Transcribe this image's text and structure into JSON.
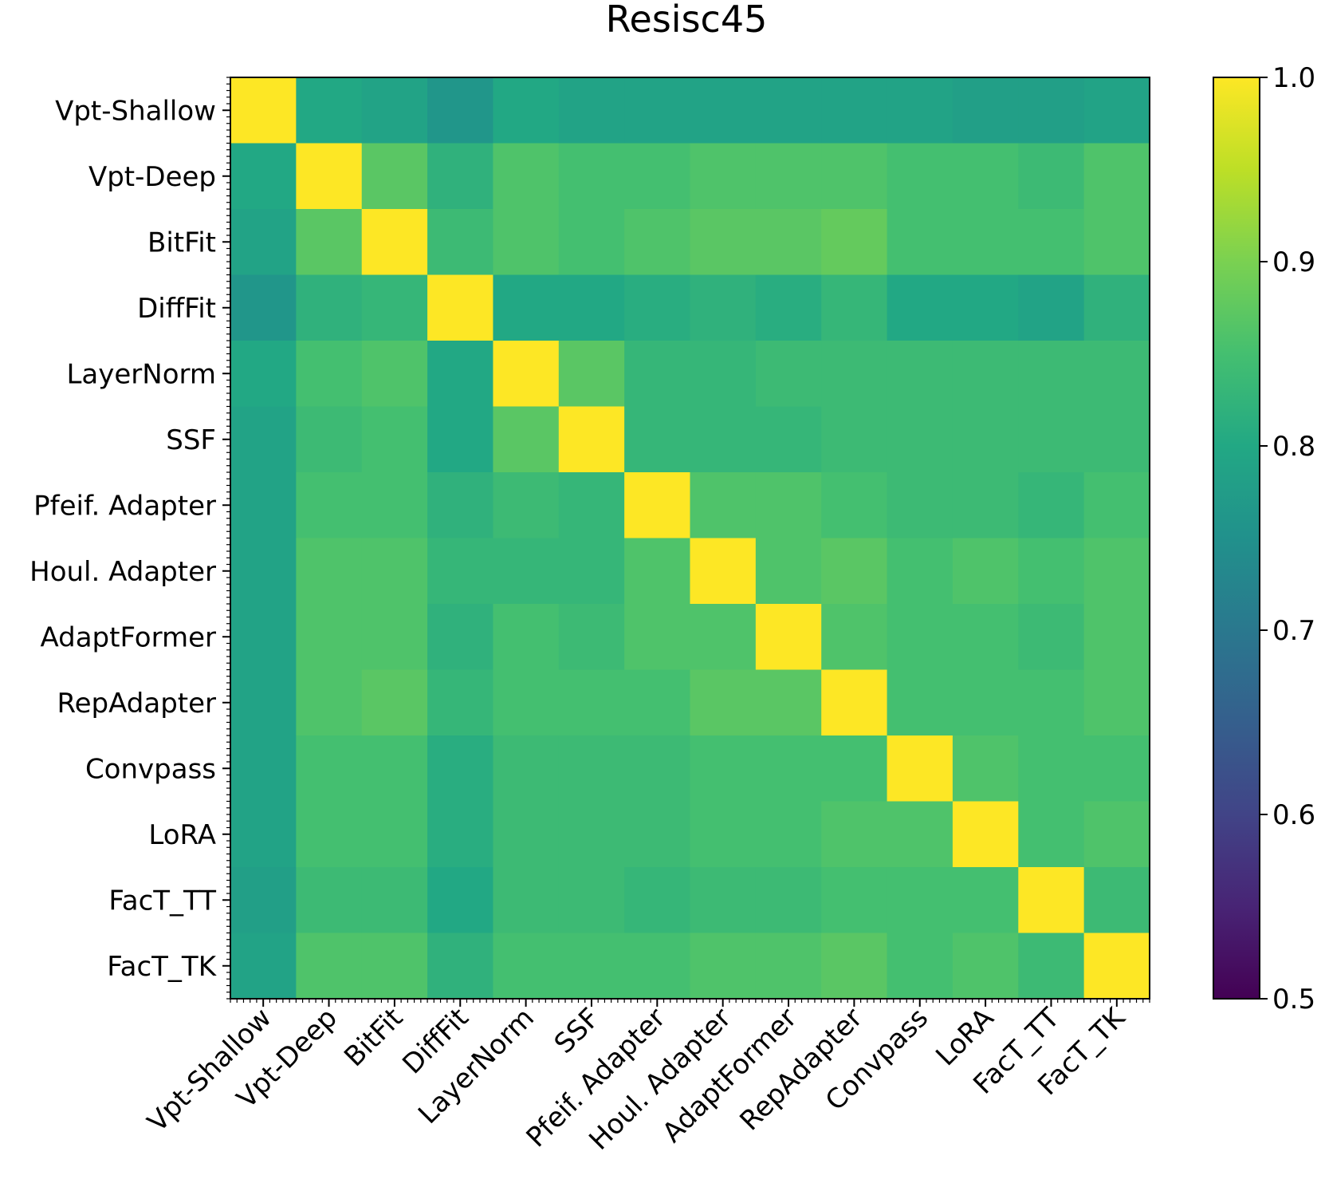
{
  "chart_data": {
    "type": "heatmap",
    "title": "Resisc45",
    "row_labels": [
      "Vpt-Shallow",
      "Vpt-Deep",
      "BitFit",
      "DiffFit",
      "LayerNorm",
      "SSF",
      "Pfeif. Adapter",
      "Houl. Adapter",
      "AdaptFormer",
      "RepAdapter",
      "Convpass",
      "LoRA",
      "FacT_TT",
      "FacT_TK"
    ],
    "col_labels": [
      "Vpt-Shallow",
      "Vpt-Deep",
      "BitFit",
      "DiffFit",
      "LayerNorm",
      "SSF",
      "Pfeif. Adapter",
      "Houl. Adapter",
      "AdaptFormer",
      "RepAdapter",
      "Convpass",
      "LoRA",
      "FacT_TT",
      "FacT_TK"
    ],
    "values": [
      [
        1.0,
        0.8,
        0.79,
        0.76,
        0.8,
        0.79,
        0.79,
        0.79,
        0.79,
        0.79,
        0.79,
        0.78,
        0.78,
        0.79
      ],
      [
        0.8,
        1.0,
        0.87,
        0.82,
        0.86,
        0.85,
        0.85,
        0.86,
        0.86,
        0.86,
        0.85,
        0.85,
        0.84,
        0.86
      ],
      [
        0.79,
        0.87,
        1.0,
        0.84,
        0.86,
        0.85,
        0.86,
        0.87,
        0.87,
        0.88,
        0.85,
        0.85,
        0.85,
        0.86
      ],
      [
        0.76,
        0.82,
        0.83,
        1.0,
        0.8,
        0.8,
        0.81,
        0.82,
        0.81,
        0.83,
        0.8,
        0.8,
        0.79,
        0.82
      ],
      [
        0.8,
        0.85,
        0.86,
        0.8,
        1.0,
        0.87,
        0.83,
        0.83,
        0.84,
        0.84,
        0.84,
        0.84,
        0.84,
        0.84
      ],
      [
        0.79,
        0.84,
        0.85,
        0.8,
        0.87,
        1.0,
        0.83,
        0.83,
        0.83,
        0.84,
        0.84,
        0.84,
        0.84,
        0.84
      ],
      [
        0.79,
        0.85,
        0.85,
        0.82,
        0.84,
        0.83,
        1.0,
        0.86,
        0.86,
        0.85,
        0.84,
        0.84,
        0.83,
        0.85
      ],
      [
        0.79,
        0.86,
        0.86,
        0.83,
        0.83,
        0.83,
        0.86,
        1.0,
        0.86,
        0.87,
        0.85,
        0.86,
        0.85,
        0.86
      ],
      [
        0.79,
        0.86,
        0.86,
        0.82,
        0.85,
        0.84,
        0.86,
        0.86,
        1.0,
        0.86,
        0.85,
        0.85,
        0.84,
        0.86
      ],
      [
        0.79,
        0.86,
        0.87,
        0.83,
        0.85,
        0.85,
        0.85,
        0.87,
        0.87,
        1.0,
        0.85,
        0.85,
        0.85,
        0.86
      ],
      [
        0.79,
        0.85,
        0.85,
        0.81,
        0.84,
        0.84,
        0.84,
        0.85,
        0.85,
        0.85,
        1.0,
        0.86,
        0.85,
        0.85
      ],
      [
        0.79,
        0.85,
        0.85,
        0.81,
        0.84,
        0.84,
        0.84,
        0.85,
        0.85,
        0.86,
        0.86,
        1.0,
        0.85,
        0.86
      ],
      [
        0.78,
        0.84,
        0.84,
        0.8,
        0.84,
        0.84,
        0.83,
        0.84,
        0.84,
        0.85,
        0.85,
        0.85,
        1.0,
        0.84
      ],
      [
        0.79,
        0.86,
        0.86,
        0.82,
        0.85,
        0.85,
        0.85,
        0.86,
        0.86,
        0.87,
        0.85,
        0.86,
        0.84,
        1.0
      ]
    ],
    "colormap": "viridis",
    "vmin": 0.5,
    "vmax": 1.0,
    "colorbar_ticks": [
      "0.5",
      "0.6",
      "0.7",
      "0.8",
      "0.9",
      "1.0"
    ],
    "grid": false
  }
}
